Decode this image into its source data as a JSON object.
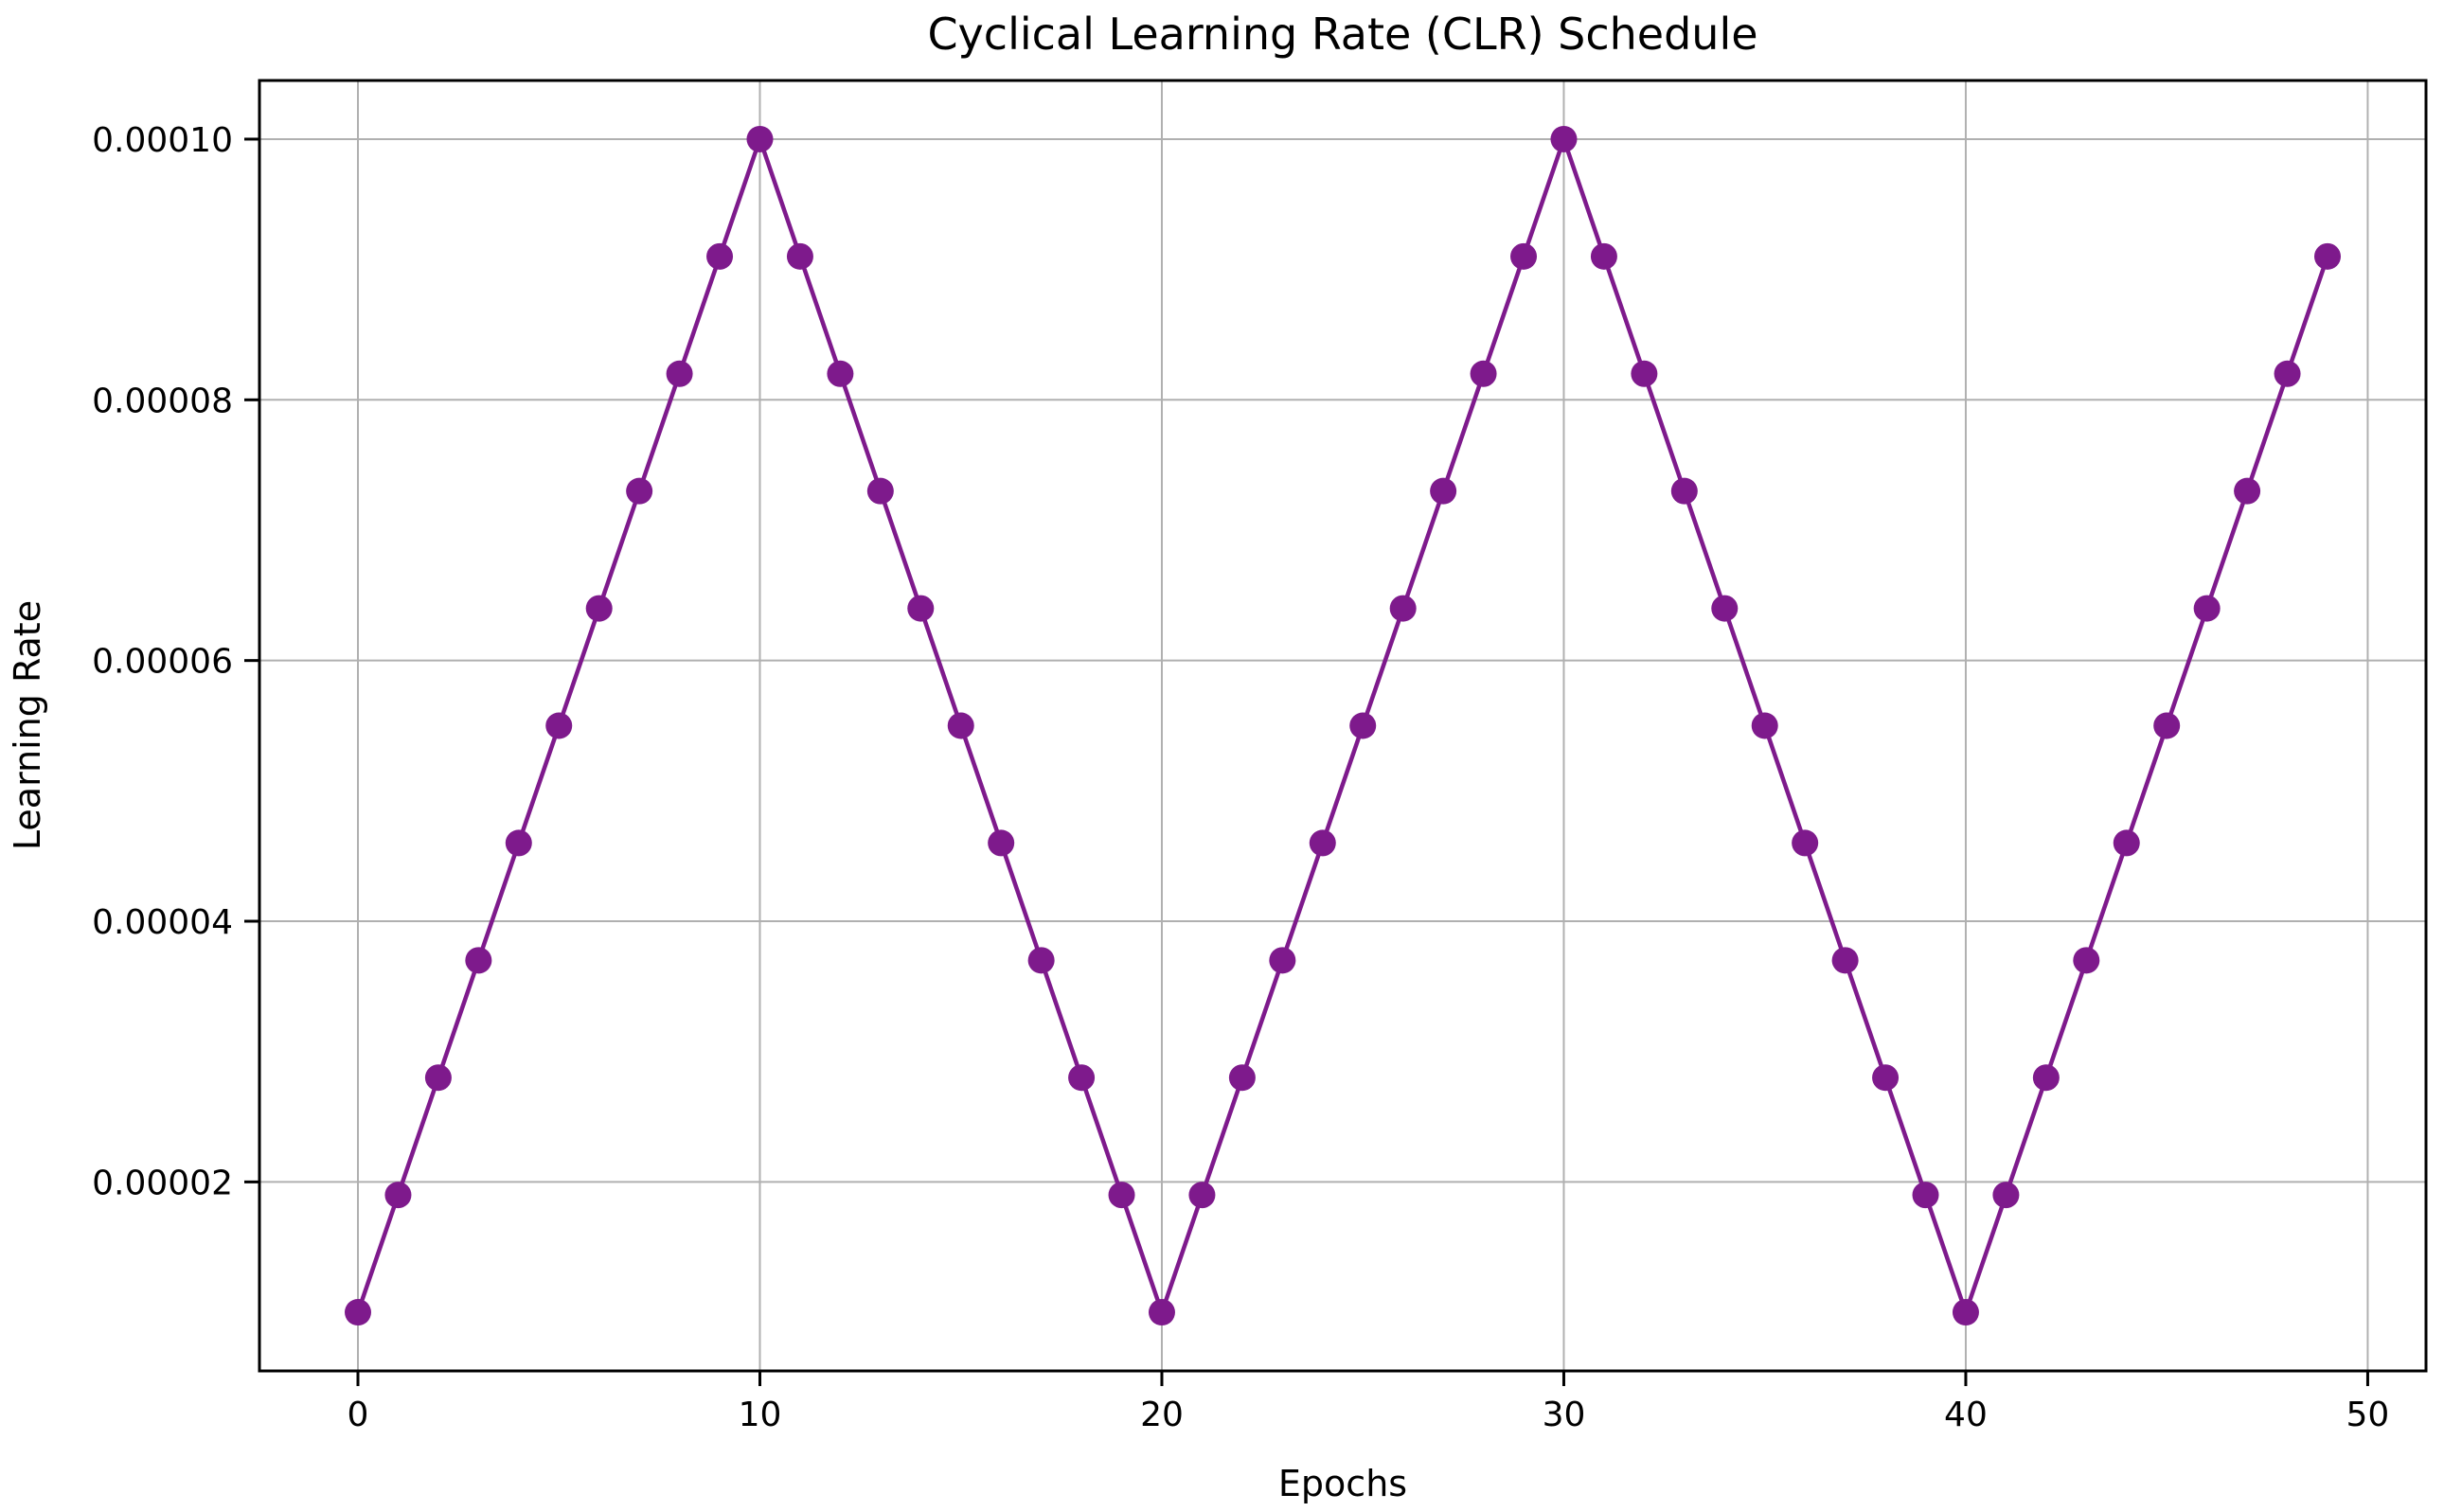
{
  "figure": {
    "background_color": "#ffffff",
    "plot_background_color": "#ffffff"
  },
  "chart_data": {
    "type": "line",
    "title": "Cyclical Learning Rate (CLR) Schedule",
    "xlabel": "Epochs",
    "ylabel": "Learning Rate",
    "legend": "none",
    "grid": "on",
    "grid_color": "#b0b0b0",
    "spine_color": "#000000",
    "line_color": "#7e1a8c",
    "marker_color": "#7e1a8c",
    "marker_shape": "circle",
    "xlim": [
      -2.45,
      51.45
    ],
    "ylim": [
      5.5e-06,
      0.0001045
    ],
    "x_ticks": [
      {
        "value": 0,
        "label": "0"
      },
      {
        "value": 10,
        "label": "10"
      },
      {
        "value": 20,
        "label": "20"
      },
      {
        "value": 30,
        "label": "30"
      },
      {
        "value": 40,
        "label": "40"
      },
      {
        "value": 50,
        "label": "50"
      }
    ],
    "y_ticks": [
      {
        "value": 2e-05,
        "label": "0.00002"
      },
      {
        "value": 4e-05,
        "label": "0.00004"
      },
      {
        "value": 6e-05,
        "label": "0.00006"
      },
      {
        "value": 8e-05,
        "label": "0.00008"
      },
      {
        "value": 0.0001,
        "label": "0.00010"
      }
    ],
    "series": [
      {
        "name": "learning_rate",
        "x": [
          0,
          1,
          2,
          3,
          4,
          5,
          6,
          7,
          8,
          9,
          10,
          11,
          12,
          13,
          14,
          15,
          16,
          17,
          18,
          19,
          20,
          21,
          22,
          23,
          24,
          25,
          26,
          27,
          28,
          29,
          30,
          31,
          32,
          33,
          34,
          35,
          36,
          37,
          38,
          39,
          40,
          41,
          42,
          43,
          44,
          45,
          46,
          47,
          48,
          49
        ],
        "values": [
          1e-05,
          1.9e-05,
          2.8e-05,
          3.7e-05,
          4.6e-05,
          5.5e-05,
          6.4e-05,
          7.3e-05,
          8.2e-05,
          9.1e-05,
          0.0001,
          9.1e-05,
          8.2e-05,
          7.3e-05,
          6.4e-05,
          5.5e-05,
          4.6e-05,
          3.7e-05,
          2.8e-05,
          1.9e-05,
          1e-05,
          1.9e-05,
          2.8e-05,
          3.7e-05,
          4.6e-05,
          5.5e-05,
          6.4e-05,
          7.3e-05,
          8.2e-05,
          9.1e-05,
          0.0001,
          9.1e-05,
          8.2e-05,
          7.3e-05,
          6.4e-05,
          5.5e-05,
          4.6e-05,
          3.7e-05,
          2.8e-05,
          1.9e-05,
          1e-05,
          1.9e-05,
          2.8e-05,
          3.7e-05,
          4.6e-05,
          5.5e-05,
          6.4e-05,
          7.3e-05,
          8.2e-05,
          9.1e-05
        ]
      }
    ],
    "schedule_params": {
      "base_lr": 1e-05,
      "max_lr": 0.0001,
      "step_size_epochs": 10,
      "total_epochs": 50
    }
  }
}
